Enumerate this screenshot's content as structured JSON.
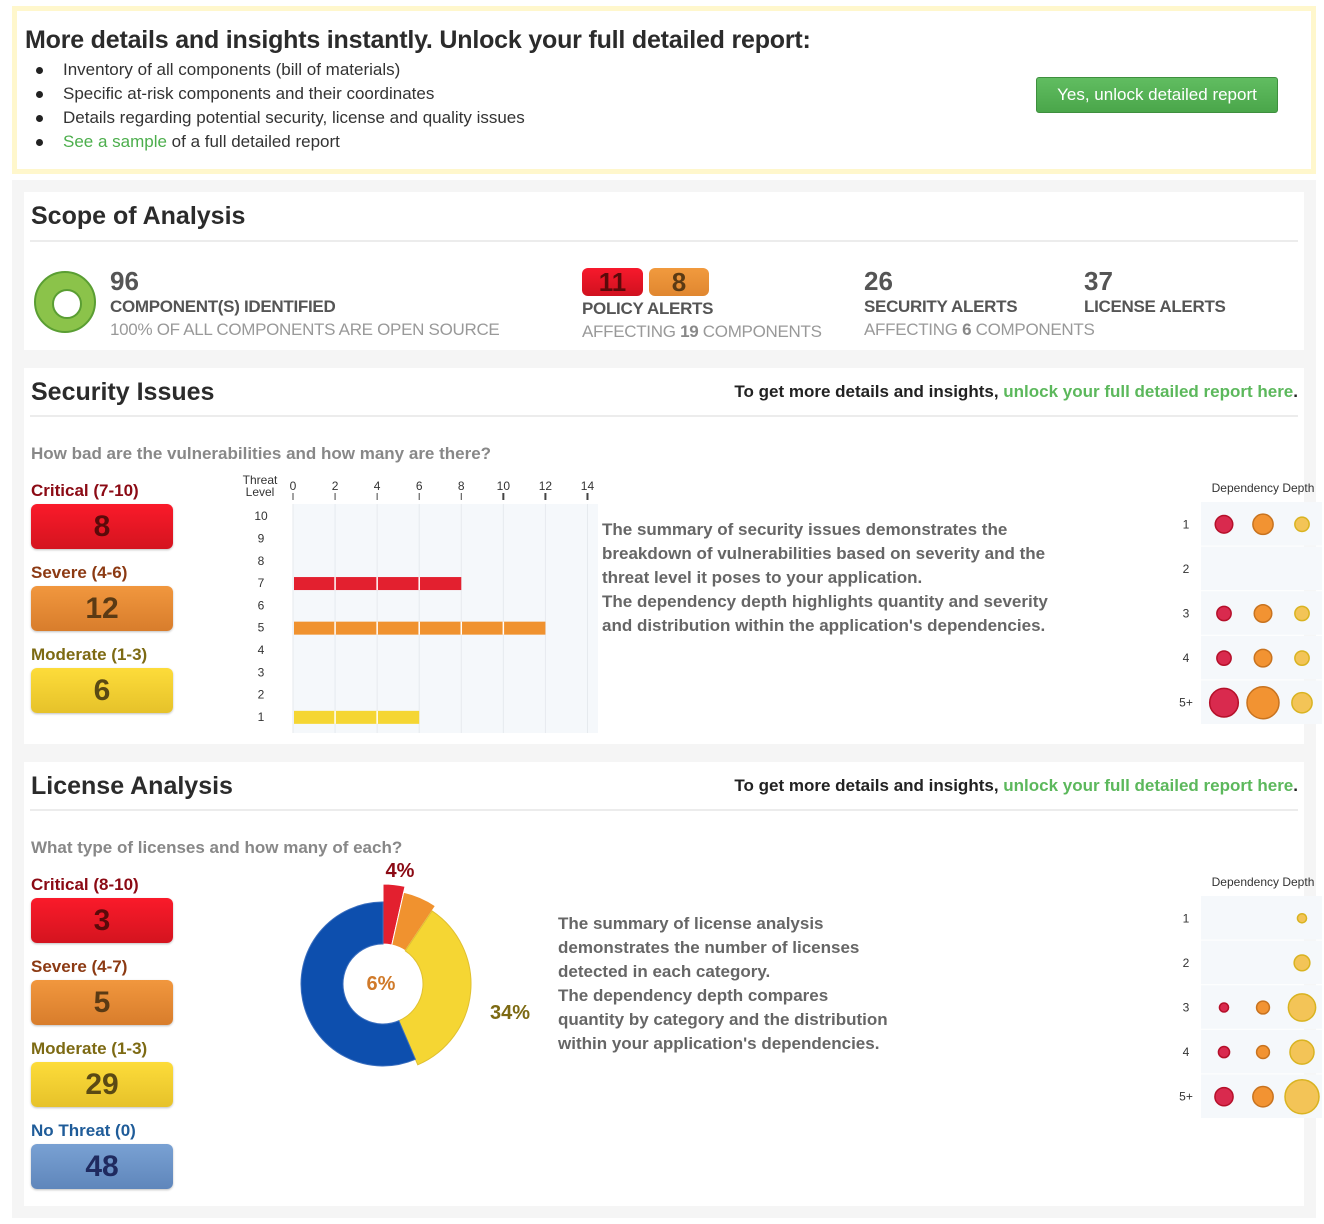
{
  "promo": {
    "title": "More details and insights instantly. Unlock your full detailed report:",
    "items": [
      "Inventory of all components (bill of materials)",
      "Specific at-risk components and their coordinates",
      "Details regarding potential security, license and quality issues"
    ],
    "sample_link": "See a sample",
    "sample_rest": " of a full detailed report",
    "button": "Yes, unlock detailed report"
  },
  "scope": {
    "title": "Scope of Analysis",
    "components": {
      "num": "96",
      "label": "COMPONENT(S) IDENTIFIED",
      "sub": "100% OF ALL COMPONENTS ARE OPEN SOURCE"
    },
    "policy": {
      "red": "11",
      "orange": "8",
      "label": "POLICY ALERTS",
      "sub_pre": "AFFECTING ",
      "sub_num": "19",
      "sub_post": " COMPONENTS"
    },
    "security": {
      "num": "26",
      "label": "SECURITY ALERTS",
      "sub_pre": "AFFECTING ",
      "sub_num": "6",
      "sub_post": " COMPONENTS"
    },
    "license": {
      "num": "37",
      "label": "LICENSE ALERTS"
    }
  },
  "security": {
    "title": "Security Issues",
    "cta_pre": "To get more details and insights, ",
    "cta_link": "unlock your full detailed report here",
    "cta_post": ".",
    "question": "How bad are the vulnerabilities and how many are there?",
    "severities": [
      {
        "label": "Critical (7-10)",
        "value": "8"
      },
      {
        "label": "Severe (4-6)",
        "value": "12"
      },
      {
        "label": "Moderate (1-3)",
        "value": "6"
      }
    ],
    "description": [
      "The summary of security issues demonstrates the",
      "breakdown of vulnerabilities based on severity and the",
      "threat level it poses to your application.",
      "The dependency depth highlights quantity and severity",
      "and distribution within the application's dependencies."
    ],
    "dependency_title": "Dependency Depth"
  },
  "license": {
    "title": "License Analysis",
    "cta_pre": "To get more details and insights, ",
    "cta_link": "unlock your full detailed report here",
    "cta_post": ".",
    "question": "What type of licenses and how many of each?",
    "severities": [
      {
        "label": "Critical (8-10)",
        "value": "3"
      },
      {
        "label": "Severe (4-7)",
        "value": "5"
      },
      {
        "label": "Moderate (1-3)",
        "value": "29"
      },
      {
        "label": "No Threat (0)",
        "value": "48"
      }
    ],
    "description": [
      "The summary of license analysis",
      "demonstrates the number of licenses",
      "detected in each category.",
      "The dependency depth compares",
      "quantity by category and the distribution",
      "within your application's dependencies."
    ],
    "dependency_title": "Dependency Depth"
  },
  "colors": {
    "critical": "#e3202f",
    "severe": "#f0922f",
    "moderate": "#f5d633",
    "none": "#0d4fae",
    "link": "#5cb85c"
  },
  "chart_data": [
    {
      "type": "bar",
      "title": "",
      "ylabel": "Threat Level",
      "xlabel": "",
      "orientation": "horizontal",
      "categories": [
        "10",
        "9",
        "8",
        "7",
        "6",
        "5",
        "4",
        "3",
        "2",
        "1"
      ],
      "xticks": [
        "0",
        "2",
        "4",
        "6",
        "8",
        "10",
        "12",
        "14"
      ],
      "xlim": [
        0,
        14.5
      ],
      "values": [
        0,
        0,
        0,
        8,
        0,
        12,
        0,
        0,
        0,
        6
      ],
      "bar_colors": [
        "critical",
        "critical",
        "critical",
        "critical",
        "severe",
        "severe",
        "severe",
        "moderate",
        "moderate",
        "moderate"
      ]
    },
    {
      "type": "scatter",
      "title": "Dependency Depth",
      "rows": [
        "1",
        "2",
        "3",
        "4",
        "5+"
      ],
      "series": [
        {
          "name": "Critical",
          "color": "critical",
          "values": [
            3,
            0,
            2,
            2,
            8
          ]
        },
        {
          "name": "Severe",
          "color": "severe",
          "values": [
            4,
            0,
            3,
            3,
            10
          ]
        },
        {
          "name": "Moderate",
          "color": "moderate",
          "values": [
            2,
            0,
            2,
            2,
            4
          ]
        }
      ]
    },
    {
      "type": "pie",
      "donut": true,
      "labels": [
        "Critical",
        "Severe",
        "Moderate",
        "No Threat"
      ],
      "values": [
        3,
        5,
        29,
        48
      ],
      "data_labels": [
        "4%",
        "6%",
        "34%",
        ""
      ],
      "colors": [
        "critical",
        "severe",
        "moderate",
        "none"
      ]
    },
    {
      "type": "scatter",
      "title": "Dependency Depth",
      "rows": [
        "1",
        "2",
        "3",
        "4",
        "5+"
      ],
      "series": [
        {
          "name": "Critical",
          "color": "critical",
          "values": [
            0,
            0,
            1,
            1.5,
            4
          ]
        },
        {
          "name": "Severe",
          "color": "severe",
          "values": [
            0,
            0,
            2,
            2,
            5
          ]
        },
        {
          "name": "Moderate",
          "color": "moderate",
          "values": [
            1,
            3,
            9,
            7,
            14
          ]
        }
      ]
    }
  ]
}
